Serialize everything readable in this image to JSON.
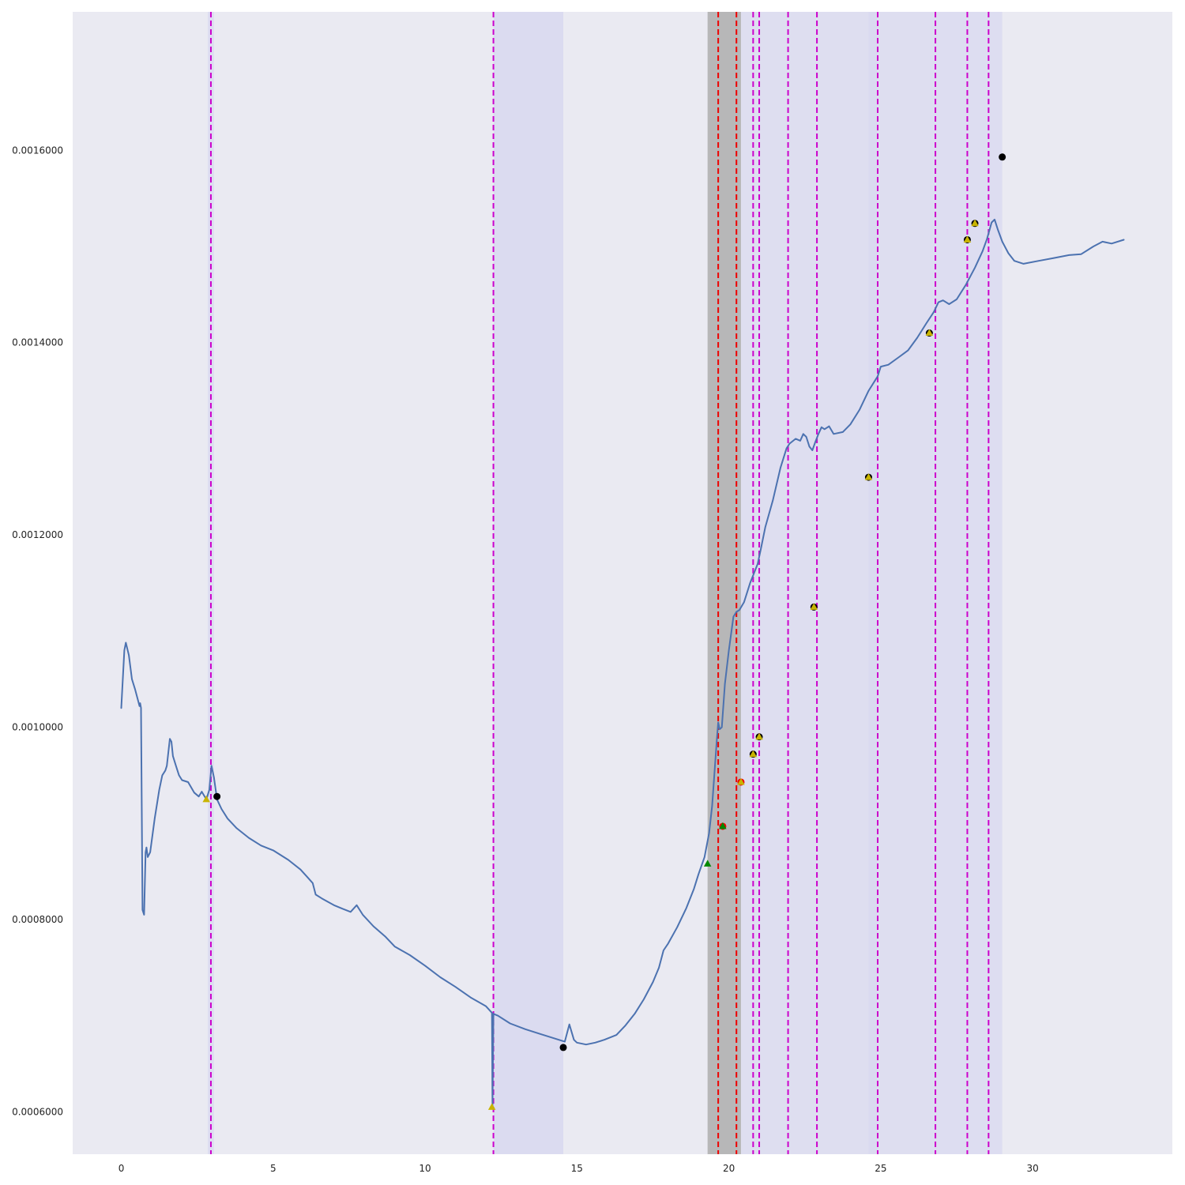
{
  "chart_data": {
    "type": "line",
    "title": "",
    "xlabel": "",
    "ylabel": "",
    "xlim": [
      -1.6,
      34.6
    ],
    "ylim": [
      0.000556,
      0.001744
    ],
    "grid": false,
    "x_ticks": [
      0,
      5,
      10,
      15,
      20,
      25,
      30
    ],
    "x_tick_labels": [
      "0",
      "5",
      "10",
      "15",
      "20",
      "25",
      "30"
    ],
    "y_ticks": [
      0.0006,
      0.0008,
      0.001,
      0.0012,
      0.0014,
      0.0016
    ],
    "y_tick_labels": [
      "0.0006000",
      "0.0008000",
      "0.0010000",
      "0.0012000",
      "0.0014000",
      "0.0016000"
    ],
    "colors": {
      "background": "#eaeaf2",
      "line": "#4c72b0",
      "vline_magenta": "#cc00cc",
      "vline_red": "#ee0000",
      "span_lavender": "#d9d9f0",
      "span_gray": "#b4b4b4"
    },
    "series": [
      {
        "values": [
          [
            0.0,
            0.00102
          ],
          [
            0.1,
            0.00108
          ],
          [
            0.15,
            0.001088
          ],
          [
            0.25,
            0.001075
          ],
          [
            0.35,
            0.00105
          ],
          [
            0.45,
            0.00104
          ],
          [
            0.55,
            0.001028
          ],
          [
            0.6,
            0.001022
          ],
          [
            0.62,
            0.001025
          ],
          [
            0.65,
            0.00102
          ],
          [
            0.7,
            0.00081
          ],
          [
            0.75,
            0.000805
          ],
          [
            0.8,
            0.00087
          ],
          [
            0.83,
            0.000875
          ],
          [
            0.87,
            0.000865
          ],
          [
            0.95,
            0.00087
          ],
          [
            1.1,
            0.000905
          ],
          [
            1.25,
            0.000935
          ],
          [
            1.35,
            0.00095
          ],
          [
            1.45,
            0.000955
          ],
          [
            1.5,
            0.00096
          ],
          [
            1.6,
            0.000988
          ],
          [
            1.65,
            0.000985
          ],
          [
            1.7,
            0.00097
          ],
          [
            1.8,
            0.00096
          ],
          [
            1.9,
            0.00095
          ],
          [
            2.0,
            0.000945
          ],
          [
            2.2,
            0.000943
          ],
          [
            2.4,
            0.000932
          ],
          [
            2.55,
            0.000928
          ],
          [
            2.65,
            0.000933
          ],
          [
            2.8,
            0.000925
          ],
          [
            2.9,
            0.000935
          ],
          [
            2.97,
            0.00096
          ],
          [
            3.05,
            0.000948
          ],
          [
            3.15,
            0.000925
          ],
          [
            3.3,
            0.000915
          ],
          [
            3.5,
            0.000905
          ],
          [
            3.8,
            0.000895
          ],
          [
            4.2,
            0.000885
          ],
          [
            4.6,
            0.000877
          ],
          [
            5.0,
            0.000872
          ],
          [
            5.5,
            0.000862
          ],
          [
            5.9,
            0.000852
          ],
          [
            6.1,
            0.000845
          ],
          [
            6.3,
            0.000838
          ],
          [
            6.4,
            0.000826
          ],
          [
            6.6,
            0.000822
          ],
          [
            7.0,
            0.000815
          ],
          [
            7.3,
            0.000811
          ],
          [
            7.55,
            0.000808
          ],
          [
            7.75,
            0.000815
          ],
          [
            7.95,
            0.000805
          ],
          [
            8.3,
            0.000793
          ],
          [
            8.7,
            0.000782
          ],
          [
            9.0,
            0.000772
          ],
          [
            9.5,
            0.000763
          ],
          [
            10.0,
            0.000752
          ],
          [
            10.5,
            0.00074
          ],
          [
            11.0,
            0.00073
          ],
          [
            11.5,
            0.000719
          ],
          [
            12.0,
            0.00071
          ],
          [
            12.2,
            0.000703
          ],
          [
            12.22,
            0.000605
          ],
          [
            12.25,
            0.000702
          ],
          [
            12.4,
            0.0007
          ],
          [
            12.8,
            0.000692
          ],
          [
            13.3,
            0.000686
          ],
          [
            13.8,
            0.000681
          ],
          [
            14.3,
            0.000676
          ],
          [
            14.6,
            0.000673
          ],
          [
            14.75,
            0.000691
          ],
          [
            14.9,
            0.000675
          ],
          [
            15.0,
            0.000672
          ],
          [
            15.3,
            0.00067
          ],
          [
            15.6,
            0.000672
          ],
          [
            15.9,
            0.000675
          ],
          [
            16.3,
            0.00068
          ],
          [
            16.6,
            0.00069
          ],
          [
            16.9,
            0.000702
          ],
          [
            17.2,
            0.000717
          ],
          [
            17.5,
            0.000735
          ],
          [
            17.7,
            0.00075
          ],
          [
            17.85,
            0.000768
          ],
          [
            18.0,
            0.000775
          ],
          [
            18.3,
            0.000792
          ],
          [
            18.6,
            0.000812
          ],
          [
            18.85,
            0.000832
          ],
          [
            19.0,
            0.000847
          ],
          [
            19.2,
            0.000865
          ],
          [
            19.35,
            0.00089
          ],
          [
            19.45,
            0.000918
          ],
          [
            19.6,
            0.000985
          ],
          [
            19.65,
            0.001005
          ],
          [
            19.7,
            0.000998
          ],
          [
            19.77,
            0.001
          ],
          [
            19.87,
            0.001045
          ],
          [
            20.0,
            0.00108
          ],
          [
            20.15,
            0.001115
          ],
          [
            20.25,
            0.00112
          ],
          [
            20.35,
            0.001122
          ],
          [
            20.5,
            0.00113
          ],
          [
            20.7,
            0.00115
          ],
          [
            20.95,
            0.00117
          ],
          [
            21.05,
            0.001185
          ],
          [
            21.2,
            0.001208
          ],
          [
            21.45,
            0.001236
          ],
          [
            21.7,
            0.00127
          ],
          [
            21.9,
            0.00129
          ],
          [
            22.0,
            0.001295
          ],
          [
            22.2,
            0.0013
          ],
          [
            22.35,
            0.001298
          ],
          [
            22.45,
            0.001305
          ],
          [
            22.55,
            0.001302
          ],
          [
            22.65,
            0.001292
          ],
          [
            22.75,
            0.001288
          ],
          [
            22.85,
            0.001297
          ],
          [
            22.95,
            0.001305
          ],
          [
            23.05,
            0.001312
          ],
          [
            23.15,
            0.00131
          ],
          [
            23.3,
            0.001313
          ],
          [
            23.45,
            0.001305
          ],
          [
            23.75,
            0.001307
          ],
          [
            24.0,
            0.001315
          ],
          [
            24.3,
            0.00133
          ],
          [
            24.6,
            0.00135
          ],
          [
            24.9,
            0.001365
          ],
          [
            25.0,
            0.001375
          ],
          [
            25.25,
            0.001377
          ],
          [
            25.6,
            0.001385
          ],
          [
            25.9,
            0.001392
          ],
          [
            26.2,
            0.001405
          ],
          [
            26.5,
            0.00142
          ],
          [
            26.75,
            0.001432
          ],
          [
            26.9,
            0.001442
          ],
          [
            27.05,
            0.001444
          ],
          [
            27.25,
            0.00144
          ],
          [
            27.5,
            0.001445
          ],
          [
            27.8,
            0.00146
          ],
          [
            28.1,
            0.001478
          ],
          [
            28.35,
            0.001495
          ],
          [
            28.5,
            0.001508
          ],
          [
            28.65,
            0.001525
          ],
          [
            28.75,
            0.001528
          ],
          [
            28.85,
            0.001518
          ],
          [
            29.0,
            0.001505
          ],
          [
            29.2,
            0.001493
          ],
          [
            29.4,
            0.001485
          ],
          [
            29.7,
            0.001482
          ],
          [
            30.2,
            0.001485
          ],
          [
            30.7,
            0.001488
          ],
          [
            31.2,
            0.001491
          ],
          [
            31.6,
            0.001492
          ],
          [
            32.0,
            0.0015
          ],
          [
            32.3,
            0.001505
          ],
          [
            32.6,
            0.001503
          ],
          [
            33.0,
            0.001507
          ]
        ]
      }
    ],
    "vertical_lines": [
      {
        "x": 2.95,
        "color": "vline_magenta",
        "style": "dashed"
      },
      {
        "x": 12.25,
        "color": "vline_magenta",
        "style": "dashed"
      },
      {
        "x": 19.65,
        "color": "vline_red",
        "style": "dashed"
      },
      {
        "x": 20.25,
        "color": "vline_red",
        "style": "dashed"
      },
      {
        "x": 20.8,
        "color": "vline_magenta",
        "style": "dashed"
      },
      {
        "x": 21.0,
        "color": "vline_magenta",
        "style": "dashed"
      },
      {
        "x": 21.95,
        "color": "vline_magenta",
        "style": "dashed"
      },
      {
        "x": 22.9,
        "color": "vline_magenta",
        "style": "dashed"
      },
      {
        "x": 24.9,
        "color": "vline_magenta",
        "style": "dashed"
      },
      {
        "x": 26.8,
        "color": "vline_magenta",
        "style": "dashed"
      },
      {
        "x": 27.85,
        "color": "vline_magenta",
        "style": "dashed"
      },
      {
        "x": 28.55,
        "color": "vline_magenta",
        "style": "dashed"
      }
    ],
    "spans": [
      {
        "x0": 2.85,
        "x1": 3.05,
        "color": "span_lavender",
        "opacity": 0.8
      },
      {
        "x0": 12.25,
        "x1": 14.55,
        "color": "span_lavender",
        "opacity": 0.9
      },
      {
        "x0": 19.3,
        "x1": 20.4,
        "color": "span_gray",
        "opacity": 0.95
      },
      {
        "x0": 20.4,
        "x1": 24.9,
        "color": "span_lavender",
        "opacity": 0.7
      },
      {
        "x0": 24.6,
        "x1": 26.6,
        "color": "span_lavender",
        "opacity": 0.7
      },
      {
        "x0": 26.6,
        "x1": 29.0,
        "color": "span_lavender",
        "opacity": 0.8
      }
    ],
    "markers": [
      {
        "x": 2.8,
        "y": 0.000925,
        "shape": "triangle",
        "color": "#c8b400"
      },
      {
        "x": 3.15,
        "y": 0.000928,
        "shape": "circle",
        "color": "#000000"
      },
      {
        "x": 12.2,
        "y": 0.000605,
        "shape": "triangle",
        "color": "#c8b400"
      },
      {
        "x": 14.55,
        "y": 0.000667,
        "shape": "circle",
        "color": "#000000"
      },
      {
        "x": 19.3,
        "y": 0.000858,
        "shape": "triangle",
        "color": "#008800"
      },
      {
        "x": 19.8,
        "y": 0.000897,
        "shape": "circle",
        "color": "#ee0000"
      },
      {
        "x": 19.8,
        "y": 0.000897,
        "shape": "triangle",
        "color": "#008800"
      },
      {
        "x": 20.4,
        "y": 0.000943,
        "shape": "circle",
        "color": "#ee0000"
      },
      {
        "x": 20.4,
        "y": 0.000943,
        "shape": "triangle",
        "color": "#c8b400"
      },
      {
        "x": 20.8,
        "y": 0.000972,
        "shape": "circle",
        "color": "#000000"
      },
      {
        "x": 20.8,
        "y": 0.000972,
        "shape": "triangle",
        "color": "#c8b400"
      },
      {
        "x": 21.0,
        "y": 0.00099,
        "shape": "circle",
        "color": "#000000"
      },
      {
        "x": 21.0,
        "y": 0.00099,
        "shape": "triangle",
        "color": "#c8b400"
      },
      {
        "x": 22.8,
        "y": 0.001125,
        "shape": "circle",
        "color": "#000000"
      },
      {
        "x": 22.8,
        "y": 0.001125,
        "shape": "triangle",
        "color": "#c8b400"
      },
      {
        "x": 24.6,
        "y": 0.00126,
        "shape": "circle",
        "color": "#000000"
      },
      {
        "x": 24.6,
        "y": 0.00126,
        "shape": "triangle",
        "color": "#c8b400"
      },
      {
        "x": 26.6,
        "y": 0.00141,
        "shape": "circle",
        "color": "#000000"
      },
      {
        "x": 26.6,
        "y": 0.00141,
        "shape": "triangle",
        "color": "#c8b400"
      },
      {
        "x": 27.85,
        "y": 0.001507,
        "shape": "circle",
        "color": "#000000"
      },
      {
        "x": 27.85,
        "y": 0.001507,
        "shape": "triangle",
        "color": "#c8b400"
      },
      {
        "x": 28.1,
        "y": 0.001524,
        "shape": "circle",
        "color": "#000000"
      },
      {
        "x": 28.1,
        "y": 0.001524,
        "shape": "triangle",
        "color": "#c8b400"
      },
      {
        "x": 29.0,
        "y": 0.001593,
        "shape": "circle",
        "color": "#000000"
      }
    ]
  }
}
